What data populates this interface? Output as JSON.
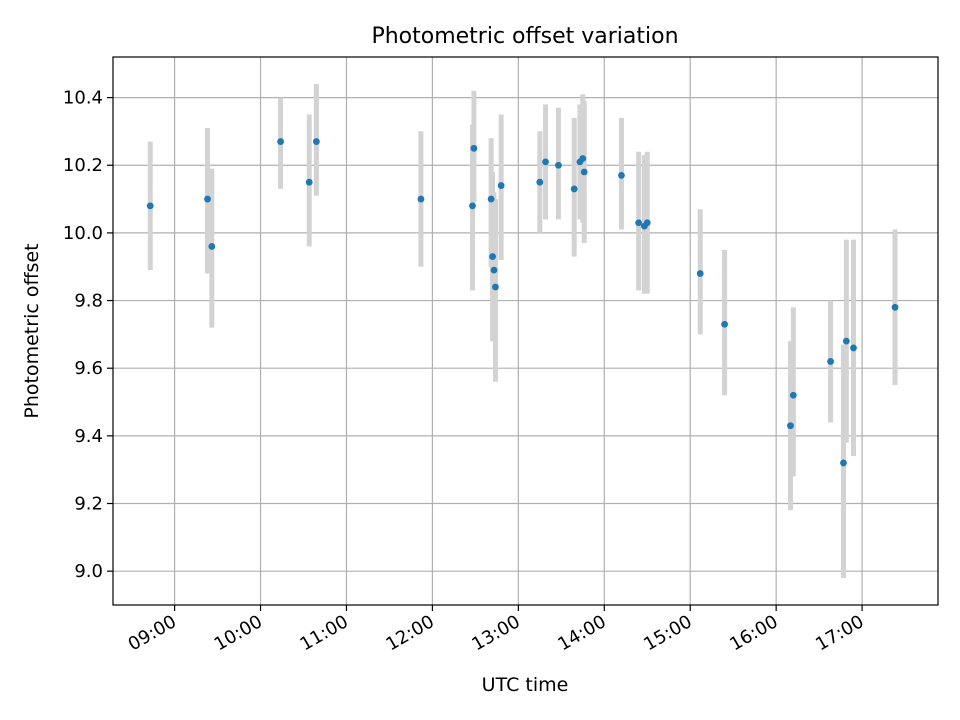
{
  "chart_data": {
    "type": "scatter",
    "title": "Photometric offset variation",
    "xlabel": "UTC time",
    "ylabel": "Photometric offset",
    "xlim": [
      "08:17",
      "17:53"
    ],
    "ylim": [
      8.9,
      10.52
    ],
    "grid": true,
    "x_ticks": [
      "09:00",
      "10:00",
      "11:00",
      "12:00",
      "13:00",
      "14:00",
      "15:00",
      "16:00",
      "17:00"
    ],
    "y_ticks": [
      9.0,
      9.2,
      9.4,
      9.6,
      9.8,
      10.0,
      10.2,
      10.4
    ],
    "y_tick_labels": [
      "9.0",
      "9.2",
      "9.4",
      "9.6",
      "9.8",
      "10.0",
      "10.2",
      "10.4"
    ],
    "colors": {
      "point": "#1f77b4",
      "error_bar": "#d3d3d3",
      "grid": "#b0b0b0"
    },
    "points": [
      {
        "x": "08:43",
        "y": 10.08,
        "lo": 9.89,
        "hi": 10.27
      },
      {
        "x": "09:23",
        "y": 10.1,
        "lo": 9.88,
        "hi": 10.31
      },
      {
        "x": "09:26",
        "y": 9.96,
        "lo": 9.72,
        "hi": 10.19
      },
      {
        "x": "10:14",
        "y": 10.27,
        "lo": 10.13,
        "hi": 10.4
      },
      {
        "x": "10:34",
        "y": 10.15,
        "lo": 9.96,
        "hi": 10.35
      },
      {
        "x": "10:39",
        "y": 10.27,
        "lo": 10.11,
        "hi": 10.44
      },
      {
        "x": "11:52",
        "y": 10.1,
        "lo": 9.9,
        "hi": 10.3
      },
      {
        "x": "12:28",
        "y": 10.08,
        "lo": 9.83,
        "hi": 10.32
      },
      {
        "x": "12:29",
        "y": 10.25,
        "lo": 10.09,
        "hi": 10.42
      },
      {
        "x": "12:41",
        "y": 10.1,
        "lo": 9.9,
        "hi": 10.28
      },
      {
        "x": "12:42",
        "y": 9.93,
        "lo": 9.68,
        "hi": 10.18
      },
      {
        "x": "12:43",
        "y": 9.89,
        "lo": 9.68,
        "hi": 10.12
      },
      {
        "x": "12:44",
        "y": 9.84,
        "lo": 9.56,
        "hi": 10.1
      },
      {
        "x": "12:48",
        "y": 10.14,
        "lo": 9.92,
        "hi": 10.35
      },
      {
        "x": "13:15",
        "y": 10.15,
        "lo": 10.0,
        "hi": 10.3
      },
      {
        "x": "13:19",
        "y": 10.21,
        "lo": 10.04,
        "hi": 10.38
      },
      {
        "x": "13:28",
        "y": 10.2,
        "lo": 10.04,
        "hi": 10.37
      },
      {
        "x": "13:39",
        "y": 10.13,
        "lo": 9.93,
        "hi": 10.34
      },
      {
        "x": "13:43",
        "y": 10.21,
        "lo": 10.04,
        "hi": 10.38
      },
      {
        "x": "13:45",
        "y": 10.22,
        "lo": 10.03,
        "hi": 10.41
      },
      {
        "x": "13:46",
        "y": 10.18,
        "lo": 9.97,
        "hi": 10.39
      },
      {
        "x": "14:12",
        "y": 10.17,
        "lo": 10.01,
        "hi": 10.34
      },
      {
        "x": "14:24",
        "y": 10.03,
        "lo": 9.83,
        "hi": 10.24
      },
      {
        "x": "14:28",
        "y": 10.02,
        "lo": 9.82,
        "hi": 10.23
      },
      {
        "x": "14:30",
        "y": 10.03,
        "lo": 9.82,
        "hi": 10.24
      },
      {
        "x": "15:07",
        "y": 9.88,
        "lo": 9.7,
        "hi": 10.07
      },
      {
        "x": "15:24",
        "y": 9.73,
        "lo": 9.52,
        "hi": 9.95
      },
      {
        "x": "16:10",
        "y": 9.43,
        "lo": 9.18,
        "hi": 9.68
      },
      {
        "x": "16:12",
        "y": 9.52,
        "lo": 9.28,
        "hi": 9.78
      },
      {
        "x": "16:38",
        "y": 9.62,
        "lo": 9.44,
        "hi": 9.8
      },
      {
        "x": "16:47",
        "y": 9.32,
        "lo": 8.98,
        "hi": 9.67
      },
      {
        "x": "16:49",
        "y": 9.68,
        "lo": 9.38,
        "hi": 9.98
      },
      {
        "x": "16:54",
        "y": 9.66,
        "lo": 9.34,
        "hi": 9.98
      },
      {
        "x": "17:23",
        "y": 9.78,
        "lo": 9.55,
        "hi": 10.01
      }
    ]
  }
}
